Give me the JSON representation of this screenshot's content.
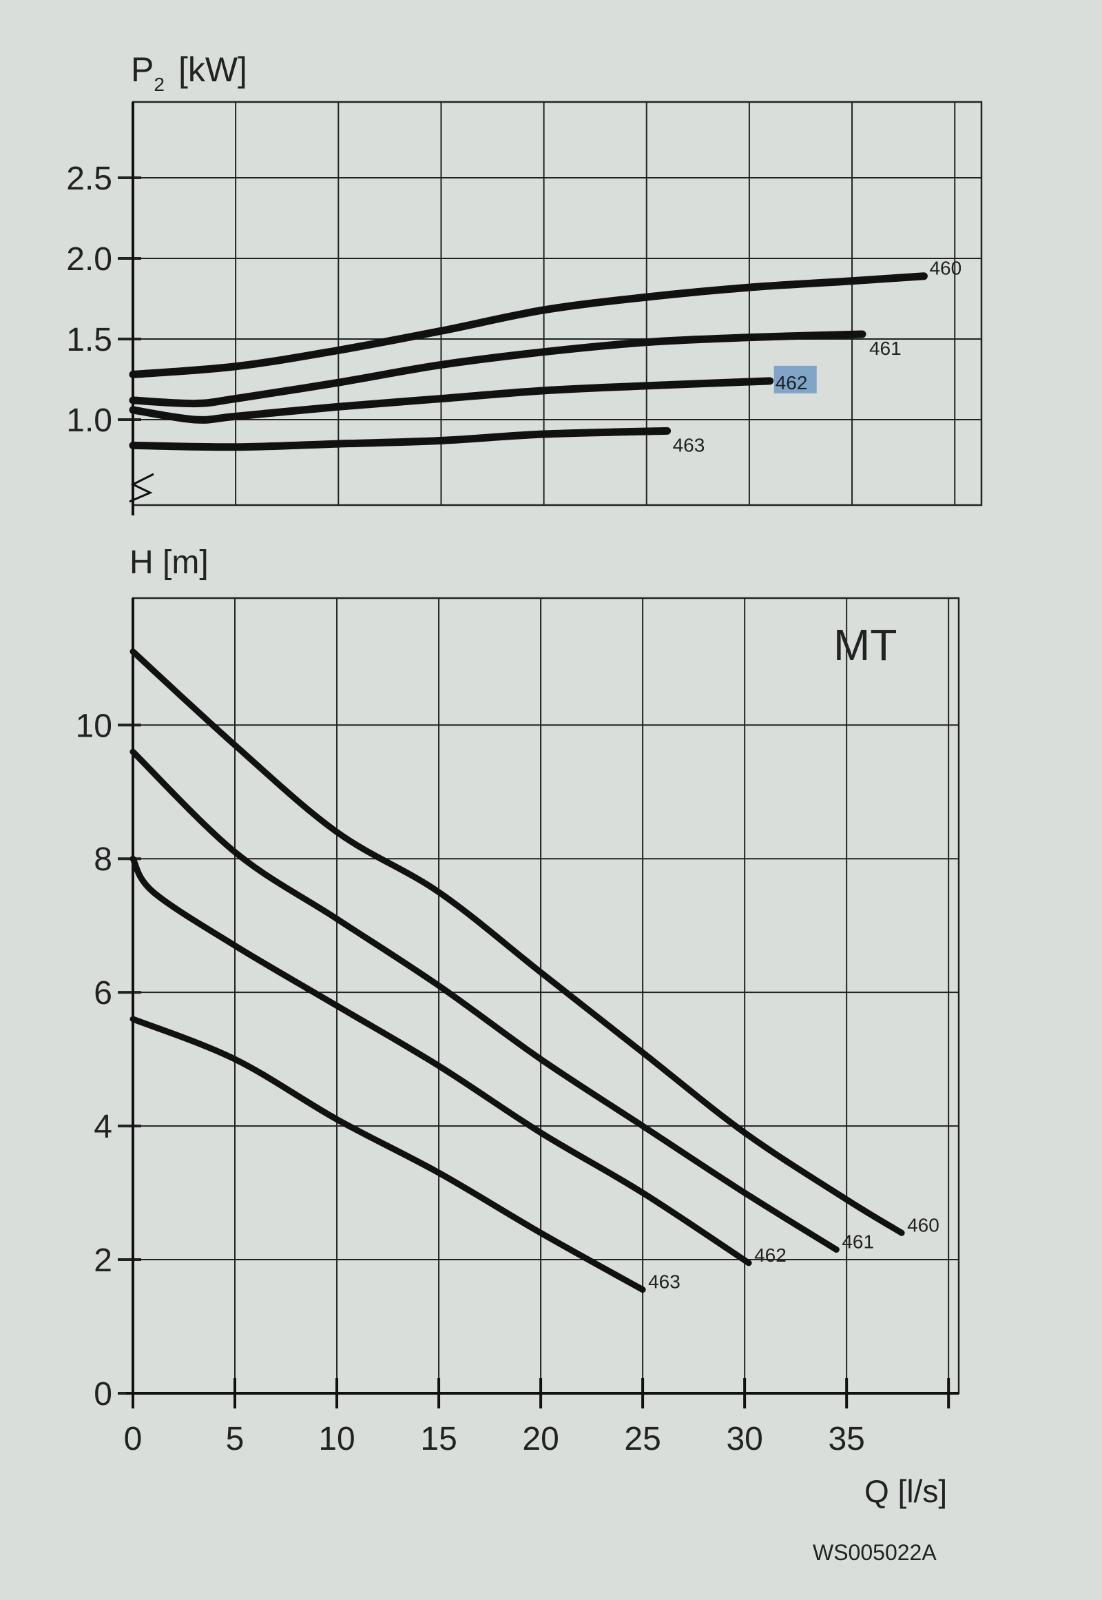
{
  "chart_data": [
    {
      "type": "line",
      "ylabel": "P2 [kW]",
      "ylabel_main": "P",
      "ylabel_sub": "2",
      "ylabel_unit": "[kW]",
      "xlim": [
        0,
        41.3
      ],
      "ylim": [
        0.47,
        2.97
      ],
      "yticks": [
        "1.0",
        "1.5",
        "2.0",
        "2.5"
      ],
      "grid": true,
      "axis_break": true,
      "series": [
        {
          "name": "460",
          "label_style": "plain",
          "points": [
            [
              0,
              1.28
            ],
            [
              5,
              1.33
            ],
            [
              10,
              1.43
            ],
            [
              15,
              1.55
            ],
            [
              20,
              1.68
            ],
            [
              25,
              1.76
            ],
            [
              30,
              1.82
            ],
            [
              35,
              1.86
            ],
            [
              38.5,
              1.89
            ]
          ]
        },
        {
          "name": "461",
          "label_style": "plain",
          "points": [
            [
              0,
              1.12
            ],
            [
              3,
              1.1
            ],
            [
              5,
              1.13
            ],
            [
              10,
              1.23
            ],
            [
              15,
              1.34
            ],
            [
              20,
              1.42
            ],
            [
              25,
              1.48
            ],
            [
              30,
              1.51
            ],
            [
              35.5,
              1.53
            ]
          ]
        },
        {
          "name": "462",
          "label_style": "highlighted",
          "points": [
            [
              0,
              1.06
            ],
            [
              3,
              1.0
            ],
            [
              5,
              1.02
            ],
            [
              10,
              1.08
            ],
            [
              15,
              1.13
            ],
            [
              20,
              1.18
            ],
            [
              25,
              1.21
            ],
            [
              31,
              1.24
            ]
          ]
        },
        {
          "name": "463",
          "label_style": "plain",
          "points": [
            [
              0,
              0.84
            ],
            [
              5,
              0.83
            ],
            [
              10,
              0.85
            ],
            [
              15,
              0.87
            ],
            [
              20,
              0.91
            ],
            [
              26,
              0.93
            ]
          ]
        }
      ]
    },
    {
      "type": "line",
      "title": "MT",
      "ylabel": "H [m]",
      "xlabel": "Q [l/s]",
      "xlim": [
        0,
        40.5
      ],
      "ylim": [
        0,
        11.9
      ],
      "xticks": [
        "0",
        "5",
        "10",
        "15",
        "20",
        "25",
        "30",
        "35"
      ],
      "yticks": [
        "0",
        "2",
        "4",
        "6",
        "8",
        "10"
      ],
      "grid": true,
      "series": [
        {
          "name": "460",
          "points": [
            [
              0,
              11.1
            ],
            [
              5,
              9.7
            ],
            [
              10,
              8.4
            ],
            [
              15,
              7.5
            ],
            [
              20,
              6.3
            ],
            [
              25,
              5.1
            ],
            [
              30,
              3.9
            ],
            [
              35,
              2.9
            ],
            [
              37.7,
              2.4
            ]
          ]
        },
        {
          "name": "461",
          "points": [
            [
              0,
              9.6
            ],
            [
              5,
              8.1
            ],
            [
              10,
              7.1
            ],
            [
              15,
              6.1
            ],
            [
              20,
              5.0
            ],
            [
              25,
              4.0
            ],
            [
              30,
              3.0
            ],
            [
              34.5,
              2.15
            ]
          ]
        },
        {
          "name": "462",
          "points": [
            [
              0,
              8.0
            ],
            [
              1,
              7.5
            ],
            [
              5,
              6.7
            ],
            [
              10,
              5.8
            ],
            [
              15,
              4.9
            ],
            [
              20,
              3.9
            ],
            [
              25,
              3.0
            ],
            [
              30.2,
              1.95
            ]
          ]
        },
        {
          "name": "463",
          "points": [
            [
              0,
              5.6
            ],
            [
              5,
              5.0
            ],
            [
              10,
              4.1
            ],
            [
              15,
              3.3
            ],
            [
              20,
              2.4
            ],
            [
              25,
              1.55
            ]
          ]
        }
      ]
    }
  ],
  "figure_code": "WS005022A",
  "colors": {
    "background": "#d9dedb",
    "curve": "#111111",
    "grid": "#222222",
    "highlight": "#7fa6c9"
  }
}
